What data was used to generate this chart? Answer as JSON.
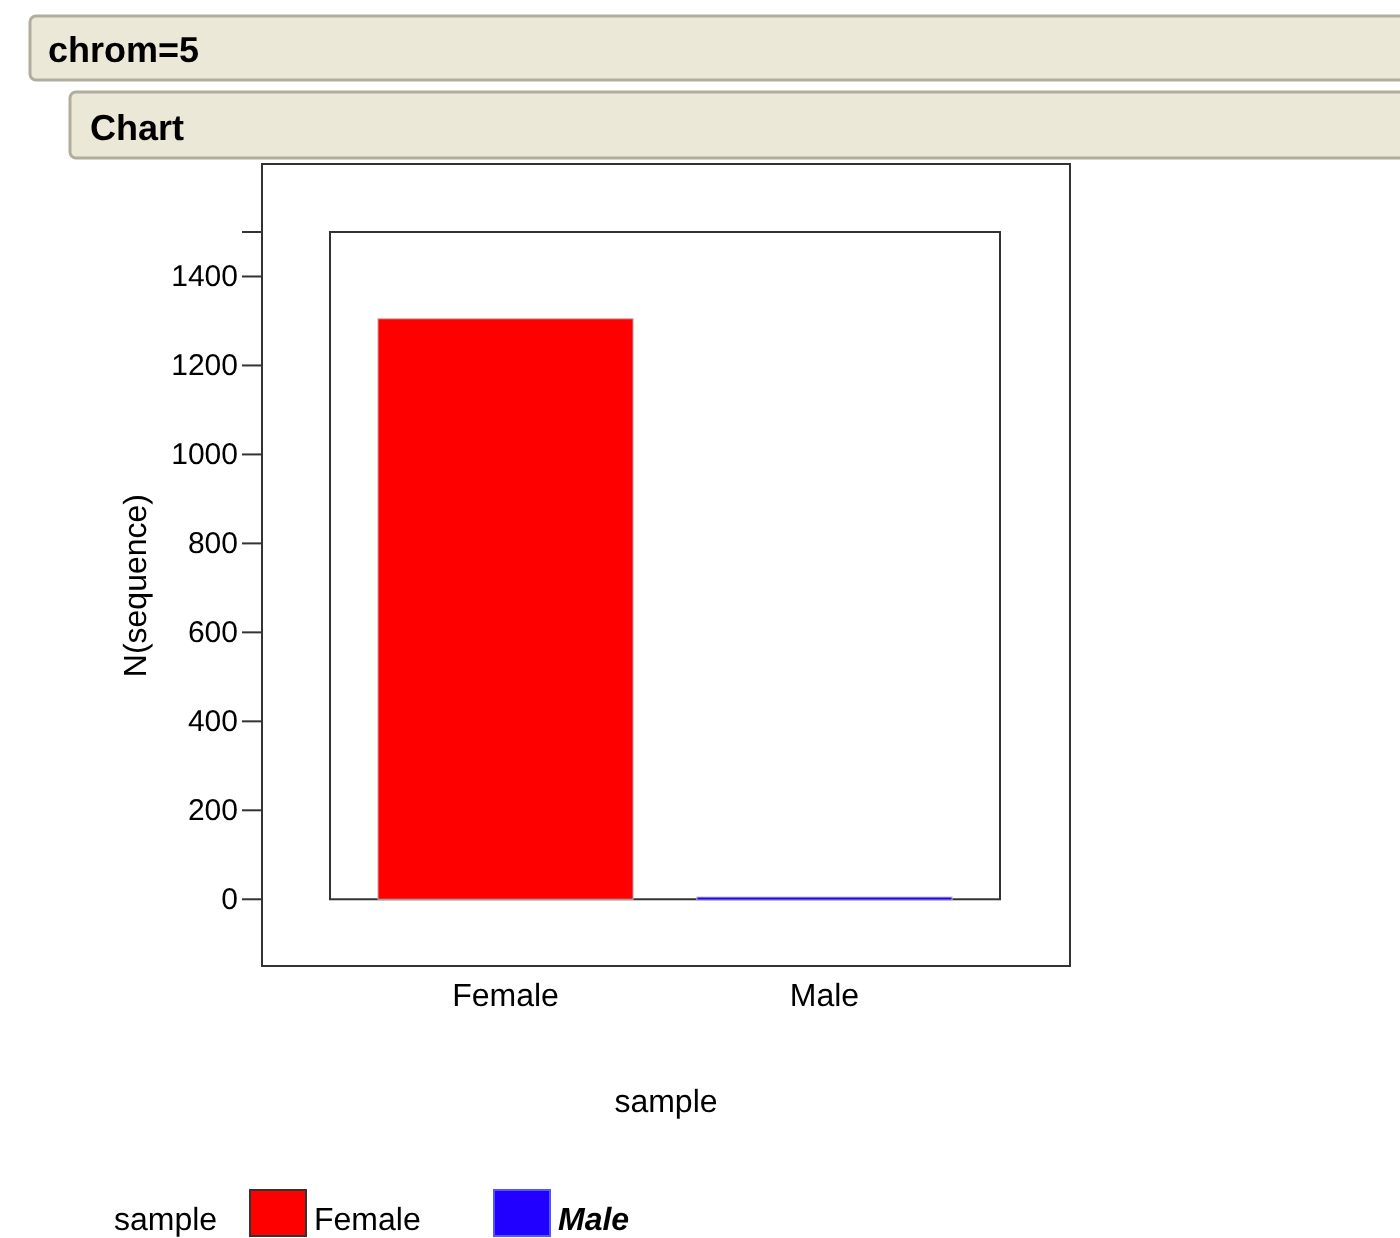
{
  "chart_data": {
    "type": "bar",
    "title": "chrom=5",
    "subtitle": "Chart",
    "xlabel": "sample",
    "ylabel": "N(sequence)",
    "legend_title": "sample",
    "categories": [
      "Female",
      "Male"
    ],
    "series": [
      {
        "name": "Female",
        "color": "#ff0000",
        "values": [
          1305,
          null
        ]
      },
      {
        "name": "Male",
        "color": "#2200ff",
        "values": [
          null,
          5
        ]
      }
    ],
    "ylim": [
      -150,
      1500
    ],
    "yticks": [
      0,
      200,
      400,
      600,
      800,
      1000,
      1200,
      1400,
      {
        "value": 1500,
        "label": null
      }
    ],
    "legend": "bottom",
    "grid": false
  }
}
